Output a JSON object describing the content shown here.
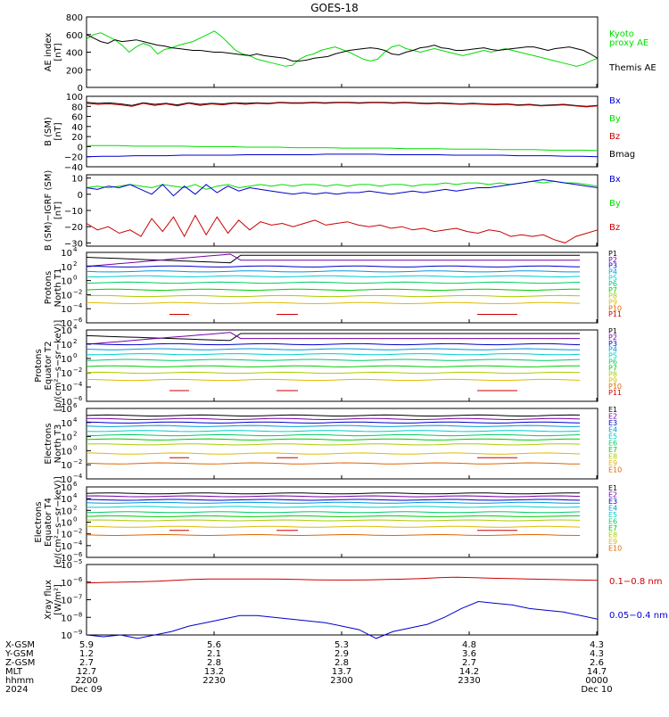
{
  "title": "GOES-18",
  "colors": {
    "black": "#000000",
    "green": "#00dd00",
    "blue": "#0000cc",
    "red": "#cc0000",
    "P": [
      "#000000",
      "#7700aa",
      "#0000cc",
      "#0099dd",
      "#00cccc",
      "#00cc66",
      "#00cc00",
      "#aacc00",
      "#ddbb00",
      "#dd6600",
      "#cc0000"
    ],
    "E": [
      "#000000",
      "#7700aa",
      "#0000cc",
      "#0099dd",
      "#00cccc",
      "#00cc66",
      "#00cc00",
      "#aacc00",
      "#ddbb00",
      "#dd6600",
      "#cc0000"
    ]
  },
  "chart_data": [
    {
      "type": "line",
      "id": "ae",
      "ylabel": [
        "AE index",
        "[nT]"
      ],
      "yticks": [
        "800",
        "600",
        "400",
        "200",
        "0"
      ],
      "ylim": [
        0,
        800
      ],
      "legend": [
        {
          "text": "Kyoto",
          "color": "green"
        },
        {
          "text": "proxy AE",
          "color": "green"
        },
        {
          "text": "Themis AE",
          "color": "black"
        }
      ],
      "series": [
        {
          "color": "green",
          "values": [
            550,
            600,
            620,
            580,
            540,
            480,
            400,
            460,
            500,
            470,
            380,
            430,
            450,
            480,
            500,
            520,
            560,
            600,
            640,
            580,
            500,
            420,
            380,
            360,
            320,
            300,
            280,
            260,
            240,
            250,
            320,
            360,
            380,
            420,
            440,
            460,
            430,
            400,
            360,
            320,
            300,
            320,
            400,
            460,
            480,
            440,
            420,
            400,
            420,
            440,
            420,
            400,
            380,
            360,
            380,
            400,
            420,
            400,
            420,
            440,
            420,
            400,
            380,
            360,
            340,
            320,
            300,
            280,
            260,
            240,
            260,
            300,
            330
          ]
        },
        {
          "color": "black",
          "values": [
            600,
            560,
            520,
            500,
            540,
            520,
            530,
            540,
            520,
            500,
            480,
            470,
            450,
            440,
            430,
            420,
            420,
            410,
            400,
            400,
            390,
            380,
            370,
            360,
            380,
            360,
            350,
            340,
            330,
            300,
            300,
            310,
            330,
            340,
            350,
            380,
            400,
            420,
            430,
            440,
            450,
            440,
            420,
            380,
            370,
            400,
            420,
            450,
            460,
            480,
            450,
            440,
            420,
            420,
            430,
            440,
            450,
            430,
            420,
            430,
            440,
            450,
            460,
            460,
            440,
            420,
            440,
            450,
            460,
            440,
            420,
            380,
            330
          ]
        }
      ]
    },
    {
      "type": "line",
      "id": "bsm",
      "ylabel": [
        "B (SM)",
        "[nT]"
      ],
      "yticks": [
        "100",
        "80",
        "60",
        "40",
        "20",
        "0",
        "−20",
        "−40"
      ],
      "ylim": [
        -40,
        100
      ],
      "legend": [
        {
          "text": "Bx",
          "color": "blue"
        },
        {
          "text": "By",
          "color": "green"
        },
        {
          "text": "Bz",
          "color": "red"
        },
        {
          "text": "Bmag",
          "color": "black"
        }
      ],
      "series": [
        {
          "color": "black",
          "values": [
            88,
            86,
            87,
            85,
            82,
            87,
            84,
            86,
            83,
            87,
            84,
            86,
            85,
            87,
            86,
            87,
            86,
            88,
            87,
            87,
            88,
            87,
            88,
            88,
            87,
            88,
            88,
            87,
            88,
            87,
            86,
            87,
            86,
            85,
            86,
            85,
            84,
            85,
            83,
            84,
            82,
            83,
            84,
            82,
            80,
            82
          ]
        },
        {
          "color": "red",
          "values": [
            86,
            84,
            85,
            83,
            80,
            86,
            82,
            85,
            81,
            86,
            82,
            85,
            83,
            86,
            84,
            86,
            85,
            87,
            86,
            86,
            87,
            86,
            87,
            87,
            86,
            87,
            87,
            86,
            87,
            86,
            85,
            86,
            85,
            84,
            85,
            84,
            83,
            84,
            82,
            83,
            81,
            82,
            83,
            81,
            79,
            81
          ]
        },
        {
          "color": "green",
          "values": [
            2,
            2,
            2,
            1,
            1,
            1,
            1,
            0,
            0,
            0,
            -1,
            -1,
            -1,
            -2,
            -2,
            -2,
            -3,
            -3,
            -3,
            -3,
            -4,
            -4,
            -4,
            -5,
            -5,
            -5,
            -6,
            -6,
            -6,
            -7,
            -7,
            -7,
            -8
          ]
        },
        {
          "color": "blue",
          "values": [
            -20,
            -19,
            -19,
            -18,
            -18,
            -18,
            -17,
            -17,
            -17,
            -17,
            -16,
            -16,
            -16,
            -16,
            -16,
            -15,
            -15,
            -15,
            -15,
            -16,
            -16,
            -16,
            -16,
            -17,
            -17,
            -17,
            -17,
            -18,
            -18,
            -18,
            -19,
            -19,
            -20
          ]
        }
      ]
    },
    {
      "type": "line",
      "id": "bigrf",
      "ylabel": [
        "B (SM)−IGRF (SM)",
        "[nT]"
      ],
      "yticks": [
        "10",
        "0",
        "−10",
        "−20",
        "−30"
      ],
      "ylim": [
        -32,
        12
      ],
      "legend": [
        {
          "text": "Bx",
          "color": "blue"
        },
        {
          "text": "By",
          "color": "green"
        },
        {
          "text": "Bz",
          "color": "red"
        }
      ],
      "series": [
        {
          "color": "green",
          "values": [
            4,
            5,
            4,
            5,
            6,
            5,
            4,
            6,
            5,
            4,
            6,
            3,
            5,
            6,
            4,
            5,
            6,
            5,
            6,
            5,
            6,
            6,
            5,
            6,
            5,
            6,
            6,
            5,
            6,
            6,
            5,
            6,
            6,
            7,
            6,
            7,
            7,
            6,
            7,
            6,
            7,
            8,
            7,
            8,
            7,
            7,
            6,
            5
          ]
        },
        {
          "color": "blue",
          "values": [
            4,
            3,
            5,
            4,
            6,
            3,
            0,
            6,
            -1,
            5,
            0,
            6,
            1,
            5,
            2,
            4,
            3,
            2,
            1,
            0,
            1,
            0,
            1,
            0,
            1,
            1,
            2,
            1,
            0,
            1,
            2,
            1,
            2,
            3,
            2,
            3,
            4,
            4,
            5,
            6,
            7,
            8,
            9,
            8,
            7,
            6,
            5,
            4
          ]
        },
        {
          "color": "red",
          "values": [
            -18,
            -22,
            -20,
            -24,
            -22,
            -26,
            -15,
            -23,
            -14,
            -26,
            -13,
            -25,
            -14,
            -24,
            -16,
            -22,
            -17,
            -19,
            -18,
            -20,
            -18,
            -16,
            -19,
            -18,
            -17,
            -19,
            -20,
            -19,
            -21,
            -20,
            -22,
            -21,
            -23,
            -22,
            -21,
            -23,
            -24,
            -22,
            -23,
            -26,
            -25,
            -26,
            -25,
            -28,
            -30,
            -26,
            -24,
            -22
          ]
        }
      ]
    },
    {
      "type": "line",
      "id": "protons-north",
      "log": true,
      "ylabel": [
        "Protons",
        "North T1"
      ],
      "ylim_exp": [
        -6,
        4
      ],
      "legend": [
        "P1",
        "P2",
        "P3",
        "P4",
        "P5",
        "P6",
        "P7",
        "P8",
        "P9",
        "P10",
        "P11"
      ],
      "levels_exp": [
        3.6,
        2.9,
        2.0,
        1.3,
        0.6,
        -0.3,
        -1.3,
        -2.2,
        -3.2,
        -4.2,
        -5.0
      ],
      "cross_exp": [
        2.0,
        3.3
      ]
    },
    {
      "type": "line",
      "id": "protons-equator",
      "log": true,
      "ylabel": [
        "Protons",
        "Equator T2",
        "[p/(cm²−s−sr−keV)]"
      ],
      "ylim_exp": [
        -6,
        4
      ],
      "legend": [
        "P1",
        "P2",
        "P3",
        "P4",
        "P5",
        "P6",
        "P7",
        "P8",
        "P9",
        "P10",
        "P11"
      ],
      "levels_exp": [
        3.5,
        2.8,
        2.0,
        1.3,
        0.6,
        -0.2,
        -1.1,
        -2.0,
        -3.0,
        -3.9,
        -4.8
      ],
      "cross_exp": [
        2.0,
        3.2
      ]
    },
    {
      "type": "line",
      "id": "electrons-north",
      "log": true,
      "ylabel": [
        "Electrons",
        "North T3"
      ],
      "ylim_exp": [
        -4,
        6
      ],
      "legend": [
        "E1",
        "E2",
        "E3",
        "E4",
        "E5",
        "E6",
        "E7",
        "E8",
        "E9",
        "E10"
      ],
      "levels_exp": [
        5.0,
        4.5,
        4.0,
        3.5,
        2.8,
        2.2,
        1.6,
        0.9,
        -0.4,
        -1.8
      ],
      "cross_exp": null
    },
    {
      "type": "line",
      "id": "electrons-equator",
      "log": true,
      "ylabel": [
        "Electrons",
        "Equator T4",
        "[e/(cm²−s−sr−keV)]"
      ],
      "ylim_exp": [
        -6,
        6
      ],
      "legend": [
        "E1",
        "E2",
        "E3",
        "E4",
        "E5",
        "E6",
        "E7",
        "E8",
        "E9",
        "E10"
      ],
      "levels_exp": [
        4.9,
        4.4,
        3.8,
        3.3,
        2.6,
        1.7,
        1.0,
        0.3,
        -0.8,
        -2.2
      ],
      "cross_exp": null
    },
    {
      "type": "line",
      "id": "xray",
      "log": true,
      "ylabel": [
        "Xray flux",
        "[W/m²]"
      ],
      "ylim_exp": [
        -9,
        -5
      ],
      "legend": [
        {
          "text": "0.1−0.8 nm",
          "color": "red"
        },
        {
          "text": "0.05−0.4 nm",
          "color": "blue"
        }
      ],
      "series_exp": [
        {
          "color": "red",
          "values": [
            -6.05,
            -6.02,
            -6.0,
            -5.98,
            -5.95,
            -5.9,
            -5.85,
            -5.82,
            -5.82,
            -5.82,
            -5.82,
            -5.83,
            -5.85,
            -5.87,
            -5.88,
            -5.88,
            -5.87,
            -5.85,
            -5.83,
            -5.8,
            -5.75,
            -5.72,
            -5.75,
            -5.78,
            -5.8,
            -5.82,
            -5.84,
            -5.86,
            -5.88,
            -5.9
          ]
        },
        {
          "color": "blue",
          "values": [
            -9.0,
            -9.1,
            -9.0,
            -9.2,
            -9.0,
            -8.8,
            -8.5,
            -8.3,
            -8.1,
            -7.9,
            -7.9,
            -8.0,
            -8.1,
            -8.2,
            -8.3,
            -8.5,
            -8.7,
            -9.2,
            -8.8,
            -8.6,
            -8.4,
            -8.0,
            -7.5,
            -7.1,
            -7.2,
            -7.3,
            -7.5,
            -7.6,
            -7.7,
            -7.9,
            -8.1
          ]
        }
      ]
    }
  ],
  "ephemeris": {
    "labels": [
      "X-GSM",
      "Y-GSM",
      "Z-GSM",
      "MLT",
      "hhmm",
      "2024"
    ],
    "columns": [
      [
        "5.9",
        "1.2",
        "2.7",
        "12.7",
        "2200",
        "Dec 09"
      ],
      [
        "5.6",
        "2.1",
        "2.8",
        "13.2",
        "2230",
        ""
      ],
      [
        "5.3",
        "2.9",
        "2.8",
        "13.7",
        "2300",
        ""
      ],
      [
        "4.8",
        "3.6",
        "2.7",
        "14.2",
        "2330",
        ""
      ],
      [
        "4.3",
        "4.3",
        "2.6",
        "14.7",
        "0000",
        "Dec 10"
      ]
    ]
  }
}
